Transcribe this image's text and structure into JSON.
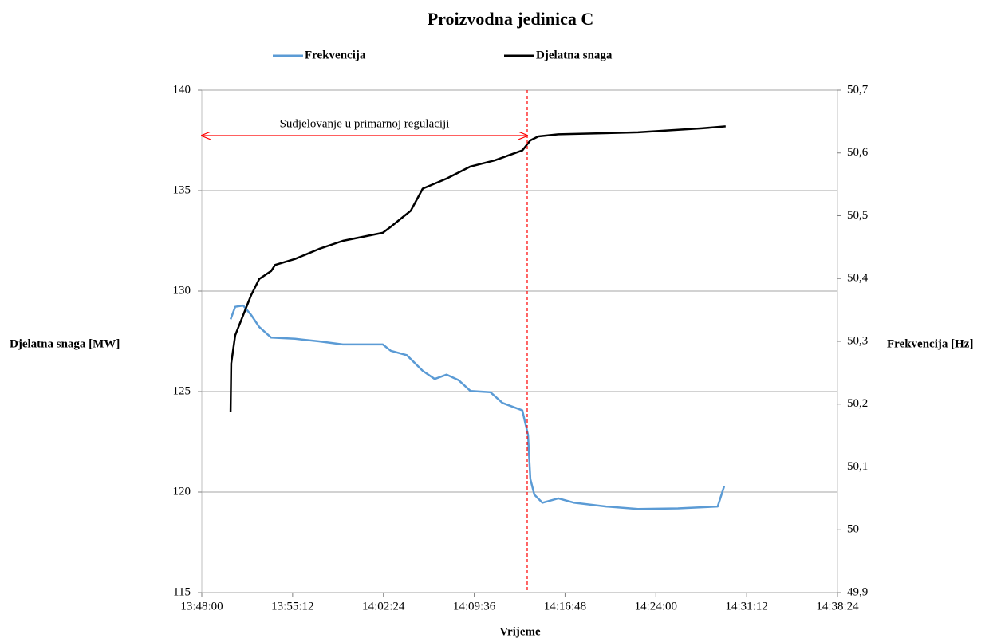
{
  "chart_data": {
    "type": "line",
    "title": "Proizvodna jedinica C",
    "xlabel": "Vrijeme",
    "ylabel": "Djelatna snaga [MW]",
    "y2label": "Frekvencija [Hz]",
    "xlim": [
      "13:48:00",
      "14:38:24"
    ],
    "xticks": [
      "13:48:00",
      "13:55:12",
      "14:02:24",
      "14:09:36",
      "14:16:48",
      "14:24:00",
      "14:31:12",
      "14:38:24"
    ],
    "ylim": [
      115,
      140
    ],
    "yticks": [
      115,
      120,
      125,
      130,
      135,
      140
    ],
    "y2lim": [
      49.9,
      50.7
    ],
    "y2ticks": [
      {
        "value": 49.9,
        "label": "49,9"
      },
      50,
      {
        "value": 50.1,
        "label": "50,1"
      },
      {
        "value": 50.2,
        "label": "50,2"
      },
      {
        "value": 50.3,
        "label": "50,3"
      },
      {
        "value": 50.4,
        "label": "50,4"
      },
      {
        "value": 50.5,
        "label": "50,5"
      },
      {
        "value": 50.6,
        "label": "50,6"
      },
      {
        "value": 50.7,
        "label": "50,7"
      }
    ],
    "grid": true,
    "annotation": {
      "text": "Sudjelovanje  u primarnoj  regulaciji",
      "x_start": "13:48:00",
      "x_end": "14:13:48",
      "vline": "14:13:48",
      "color": "#ff0000"
    },
    "series": [
      {
        "name": "Frekvencija",
        "color": "#5b9bd5",
        "axis": "y2",
        "x": [
          "13:50:17",
          "13:50:39",
          "13:51:17",
          "13:51:55",
          "13:52:33",
          "13:53:30",
          "13:55:24",
          "13:57:18",
          "13:59:11",
          "14:02:21",
          "14:02:59",
          "14:04:15",
          "14:05:31",
          "14:06:28",
          "14:07:25",
          "14:08:22",
          "14:09:18",
          "14:10:53",
          "14:11:50",
          "14:13:25",
          "14:13:52",
          "14:14:03",
          "14:14:22",
          "14:15:00",
          "14:16:16",
          "14:17:32",
          "14:20:03",
          "14:22:35",
          "14:25:45",
          "14:28:54",
          "14:29:25"
        ],
        "values": [
          50.335,
          50.355,
          50.357,
          50.342,
          50.323,
          50.306,
          50.304,
          50.3,
          50.295,
          50.295,
          50.285,
          50.278,
          50.253,
          50.24,
          50.247,
          50.238,
          50.221,
          50.219,
          50.202,
          50.19,
          50.151,
          50.081,
          50.056,
          50.043,
          50.05,
          50.043,
          50.037,
          50.033,
          50.034,
          50.037,
          50.069
        ]
      },
      {
        "name": "Djelatna snaga",
        "color": "#000000",
        "axis": "y",
        "x": [
          "13:50:17",
          "13:50:20",
          "13:50:39",
          "13:51:17",
          "13:51:55",
          "13:52:33",
          "13:53:30",
          "13:53:49",
          "13:55:24",
          "13:57:18",
          "13:59:11",
          "14:02:21",
          "14:02:59",
          "14:04:34",
          "14:05:31",
          "14:07:25",
          "14:09:18",
          "14:11:12",
          "14:13:25",
          "14:14:03",
          "14:14:41",
          "14:16:16",
          "14:22:35",
          "14:27:39",
          "14:29:32"
        ],
        "values": [
          124.0,
          126.4,
          127.8,
          128.8,
          129.8,
          130.6,
          131.0,
          131.3,
          131.6,
          132.1,
          132.5,
          132.9,
          133.2,
          134.0,
          135.1,
          135.6,
          136.2,
          136.5,
          137.0,
          137.5,
          137.7,
          137.8,
          137.9,
          138.1,
          138.2
        ]
      }
    ]
  }
}
